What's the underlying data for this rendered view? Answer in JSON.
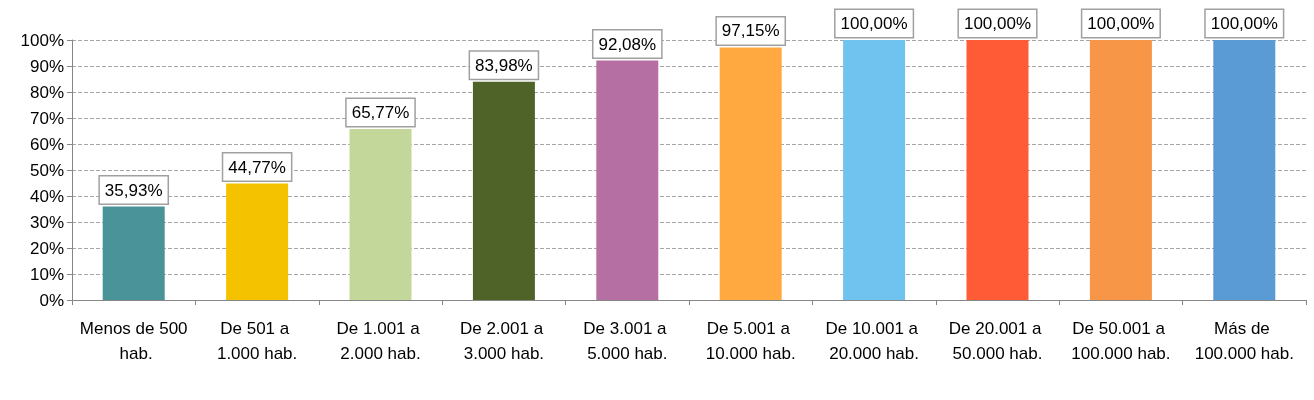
{
  "chart_data": {
    "type": "bar",
    "categories": [
      "Menos de 500 hab.",
      "De 501 a 1.000 hab.",
      "De 1.001 a 2.000 hab.",
      "De 2.001 a 3.000 hab.",
      "De 3.001 a 5.000 hab.",
      "De 5.001 a 10.000 hab.",
      "De 10.001 a 20.000 hab.",
      "De 20.001 a 50.000 hab.",
      "De 50.001 a 100.000 hab.",
      "Más de 100.000 hab."
    ],
    "values": [
      35.93,
      44.77,
      65.77,
      83.98,
      92.08,
      97.15,
      100,
      100,
      100,
      100
    ],
    "value_labels": [
      "35,93%",
      "44,77%",
      "65,77%",
      "83,98%",
      "92,08%",
      "97,15%",
      "100,00%",
      "100,00%",
      "100,00%",
      "100,00%"
    ],
    "colors": [
      "#4a9399",
      "#f5c200",
      "#c4d79b",
      "#4f6228",
      "#b56fa3",
      "#ffa940",
      "#6fc3ee",
      "#ff5b36",
      "#f79646",
      "#5b9bd5"
    ],
    "ylim": [
      0,
      100
    ],
    "yticks": [
      {
        "value": 0,
        "label": "0%"
      },
      {
        "value": 10,
        "label": "10%"
      },
      {
        "value": 20,
        "label": "20%"
      },
      {
        "value": 30,
        "label": "30%"
      },
      {
        "value": 40,
        "label": "40%"
      },
      {
        "value": 50,
        "label": "50%"
      },
      {
        "value": 60,
        "label": "60%"
      },
      {
        "value": 70,
        "label": "70%"
      },
      {
        "value": 80,
        "label": "80%"
      },
      {
        "value": 90,
        "label": "90%"
      },
      {
        "value": 100,
        "label": "100%"
      }
    ],
    "grid": "y"
  }
}
